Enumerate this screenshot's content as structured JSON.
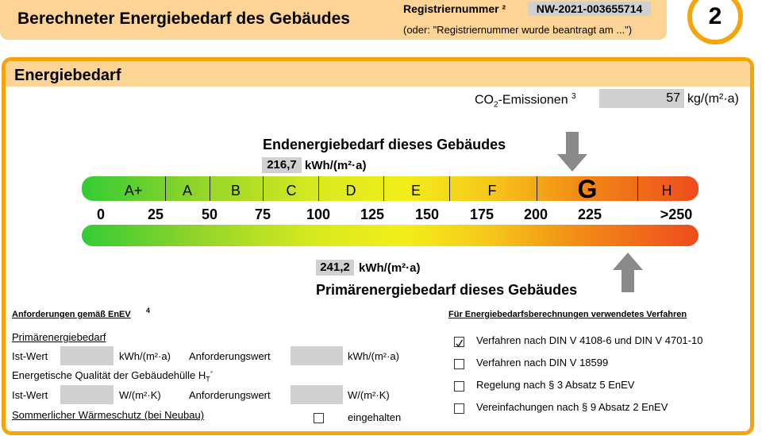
{
  "header": {
    "title": "Berechneter Energiebedarf des Gebäudes",
    "reg_label": "Registriernummer ²",
    "reg_number": "NW-2021-003655714",
    "reg_note": "(oder: \"Registriernummer wurde beantragt am ...\")",
    "page_number": "2"
  },
  "section": {
    "title": "Energiebedarf"
  },
  "co2": {
    "label_start": "CO",
    "label_sub": "2",
    "label_end": "-Emissionen",
    "footnote": "3",
    "value": "57",
    "unit": "kg/(m²·a)"
  },
  "scale": {
    "end_title": "Endenergiebedarf dieses Gebäudes",
    "end_value": "216,7",
    "end_unit": "kWh/(m²·a)",
    "classes": [
      "A+",
      "A",
      "B",
      "C",
      "D",
      "E",
      "F",
      "G",
      "H"
    ],
    "ticks": [
      "0",
      "25",
      "50",
      "75",
      "100",
      "125",
      "150",
      "175",
      "200",
      "225",
      ">250"
    ],
    "primary_value": "241,2",
    "primary_unit": "kWh/(m²·a)",
    "primary_title": "Primärenergiebedarf dieses Gebäudes"
  },
  "requirements": {
    "heading": "Anforderungen gemäß EnEV",
    "footnote": "4",
    "primary": {
      "title": "Primärenergiebedarf",
      "actual": "Ist-Wert",
      "actual_unit": "kWh/(m²·a)",
      "required": "Anforderungswert",
      "required_unit": "kWh/(m²·a)"
    },
    "envelope": {
      "title_start": "Energetische Qualität der Gebäudehülle H",
      "title_sub": "T",
      "title_end": "´",
      "actual": "Ist-Wert",
      "actual_unit": "W/(m²·K)",
      "required": "Anforderungswert",
      "required_unit": "W/(m²·K)"
    },
    "summer": {
      "title": "Sommerlicher Wärmeschutz (bei Neubau)",
      "option": "eingehalten",
      "checked": false
    }
  },
  "methods": {
    "heading": "Für Energiebedarfsberechnungen verwendetes Verfahren",
    "options": [
      {
        "label": "Verfahren nach DIN V 4108-6 und DIN V 4701-10",
        "checked": true
      },
      {
        "label": "Verfahren nach DIN V 18599",
        "checked": false
      },
      {
        "label": "Regelung nach § 3 Absatz 5 EnEV",
        "checked": false
      },
      {
        "label": "Vereinfachungen nach § 9 Absatz 2 EnEV",
        "checked": false
      }
    ]
  }
}
